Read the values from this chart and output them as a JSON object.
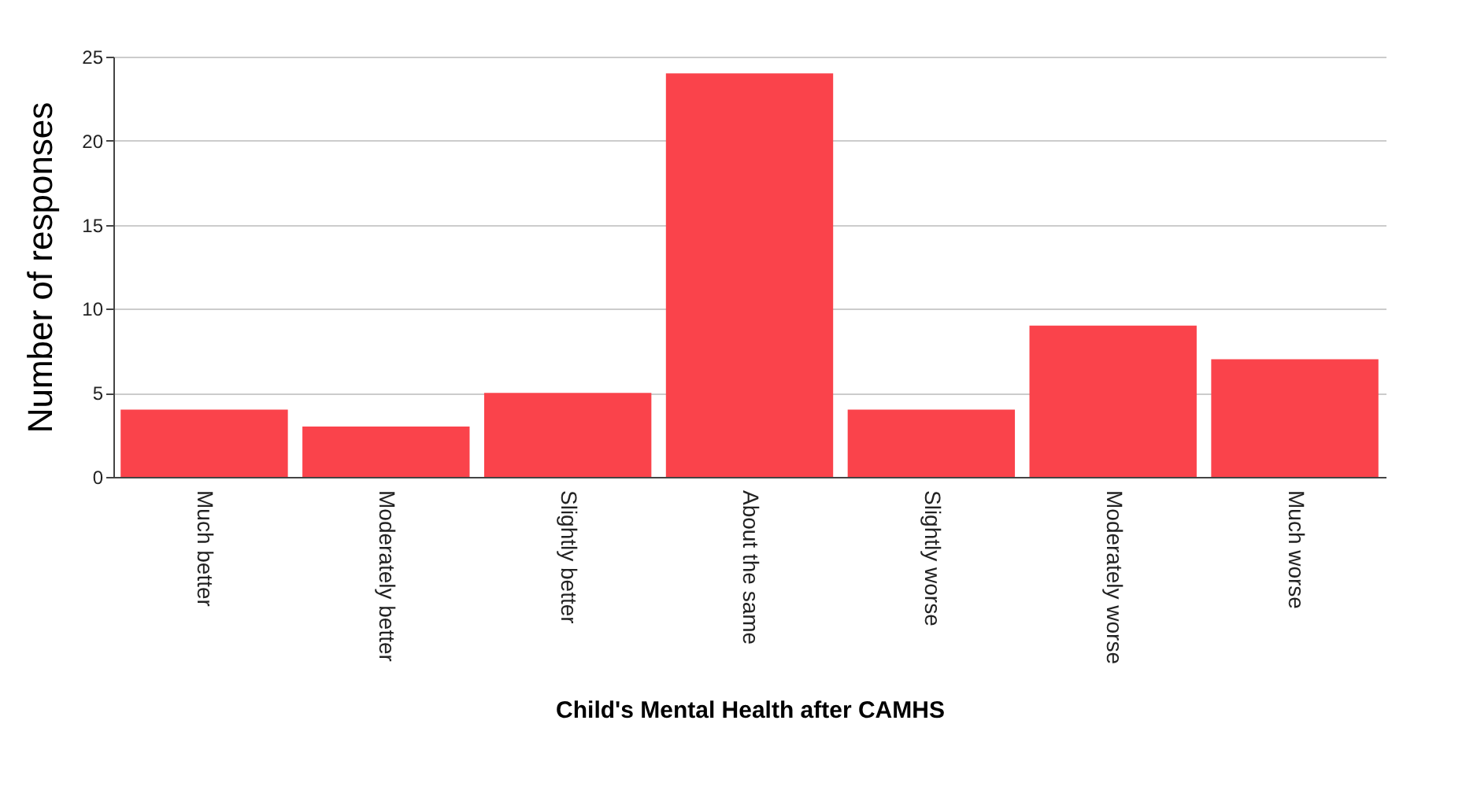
{
  "chart_data": {
    "type": "bar",
    "xlabel": "Child's Mental Health after CAMHS",
    "ylabel": "Number of responses",
    "categories": [
      "Much better",
      "Moderately better",
      "Slightly better",
      "About the same",
      "Slightly worse",
      "Moderately worse",
      "Much worse"
    ],
    "values": [
      4,
      3,
      5,
      24,
      4,
      9,
      7
    ],
    "color": "#fa434b",
    "ylim": [
      0,
      25
    ],
    "yticks": [
      0,
      5,
      10,
      15,
      20,
      25
    ],
    "grid": "y"
  }
}
